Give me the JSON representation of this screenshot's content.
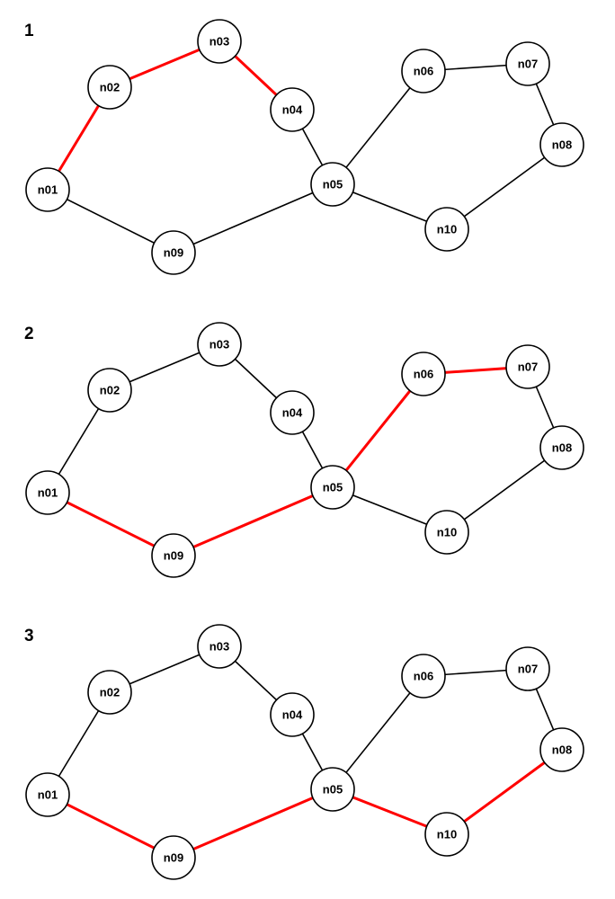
{
  "colors": {
    "edge": "#000000",
    "highlight": "#ff0000",
    "node_fill": "#ffffff"
  },
  "nodes": [
    "n01",
    "n02",
    "n03",
    "n04",
    "n05",
    "n06",
    "n07",
    "n08",
    "n09",
    "n10"
  ],
  "edges": [
    [
      "n01",
      "n02"
    ],
    [
      "n02",
      "n03"
    ],
    [
      "n03",
      "n04"
    ],
    [
      "n04",
      "n05"
    ],
    [
      "n05",
      "n09"
    ],
    [
      "n09",
      "n01"
    ],
    [
      "n05",
      "n06"
    ],
    [
      "n06",
      "n07"
    ],
    [
      "n07",
      "n08"
    ],
    [
      "n08",
      "n10"
    ],
    [
      "n10",
      "n05"
    ]
  ],
  "panels": [
    {
      "label": "1",
      "highlighted": [
        [
          "n01",
          "n02"
        ],
        [
          "n02",
          "n03"
        ],
        [
          "n03",
          "n04"
        ]
      ]
    },
    {
      "label": "2",
      "highlighted": [
        [
          "n01",
          "n09"
        ],
        [
          "n09",
          "n05"
        ],
        [
          "n05",
          "n06"
        ],
        [
          "n06",
          "n07"
        ]
      ]
    },
    {
      "label": "3",
      "highlighted": [
        [
          "n01",
          "n09"
        ],
        [
          "n09",
          "n05"
        ],
        [
          "n05",
          "n10"
        ],
        [
          "n10",
          "n08"
        ]
      ]
    }
  ]
}
